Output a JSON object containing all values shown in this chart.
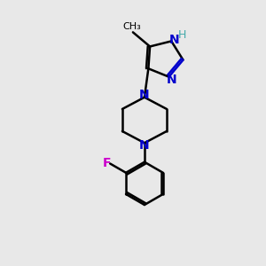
{
  "bg_color": "#e8e8e8",
  "bond_color": "#000000",
  "n_color": "#0000cc",
  "f_color": "#cc00cc",
  "h_color": "#44aaaa",
  "line_width": 1.8,
  "font_size": 10,
  "small_font_size": 9,
  "xlim": [
    0,
    10
  ],
  "ylim": [
    0,
    10
  ]
}
